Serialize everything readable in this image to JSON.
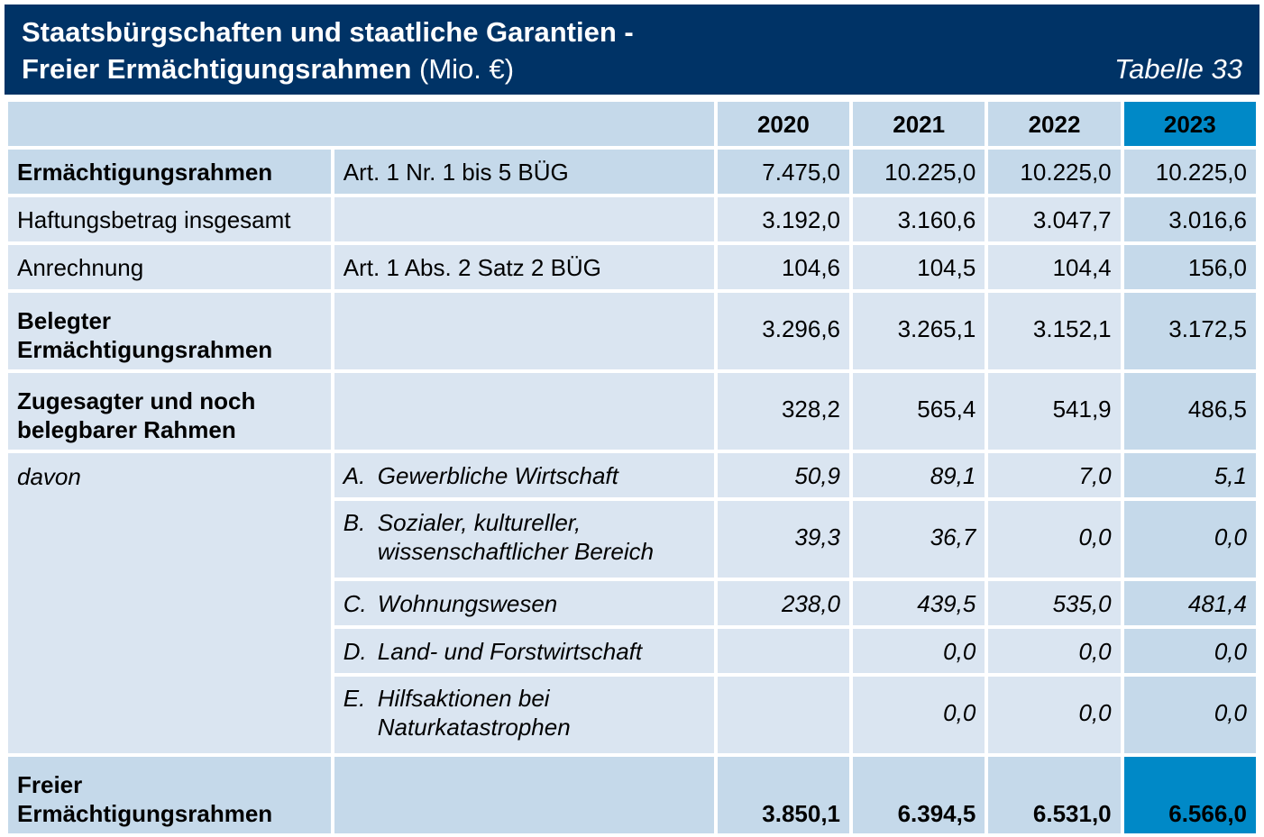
{
  "header": {
    "title_line1": "Staatsbürgschaften und staatliche Garantien -",
    "title_line2_bold": "Freier Ermächtigungsrahmen",
    "title_line2_unit": " (Mio. €)",
    "table_label": "Tabelle 33"
  },
  "years": [
    "2020",
    "2021",
    "2022",
    "2023"
  ],
  "rows": {
    "ermaechtigung": {
      "label": "Ermächtigungsrahmen",
      "ref": "Art. 1 Nr. 1 bis 5 BÜG",
      "values": [
        "7.475,0",
        "10.225,0",
        "10.225,0",
        "10.225,0"
      ]
    },
    "haftung": {
      "label": "Haftungsbetrag insgesamt",
      "ref": "",
      "values": [
        "3.192,0",
        "3.160,6",
        "3.047,7",
        "3.016,6"
      ]
    },
    "anrechnung": {
      "label": "Anrechnung",
      "ref": "Art. 1 Abs. 2 Satz 2 BÜG",
      "values": [
        "104,6",
        "104,5",
        "104,4",
        "156,0"
      ]
    },
    "belegt": {
      "label_line1": "Belegter",
      "label_line2": "Ermächtigungsrahmen",
      "values": [
        "3.296,6",
        "3.265,1",
        "3.152,1",
        "3.172,5"
      ]
    },
    "zugesagt": {
      "label_line1": "Zugesagter und noch",
      "label_line2": "belegbarer Rahmen",
      "values": [
        "328,2",
        "565,4",
        "541,9",
        "486,5"
      ]
    },
    "davon_label": "davon",
    "sub_a": {
      "letter": "A.",
      "text": "Gewerbliche Wirtschaft",
      "values": [
        "50,9",
        "89,1",
        "7,0",
        "5,1"
      ]
    },
    "sub_b": {
      "letter": "B.",
      "text_line1": "Sozialer, kultureller,",
      "text_line2": "wissenschaftlicher Bereich",
      "values": [
        "39,3",
        "36,7",
        "0,0",
        "0,0"
      ]
    },
    "sub_c": {
      "letter": "C.",
      "text": "Wohnungswesen",
      "values": [
        "238,0",
        "439,5",
        "535,0",
        "481,4"
      ]
    },
    "sub_d": {
      "letter": "D.",
      "text": "Land- und Forstwirtschaft",
      "values": [
        "",
        "0,0",
        "0,0",
        "0,0"
      ]
    },
    "sub_e": {
      "letter": "E.",
      "text_line1": "Hilfsaktionen bei",
      "text_line2": "Naturkatastrophen",
      "values": [
        "",
        "0,0",
        "0,0",
        "0,0"
      ]
    },
    "frei": {
      "label_line1": "Freier",
      "label_line2": "Ermächtigungsrahmen",
      "values": [
        "3.850,1",
        "6.394,5",
        "6.531,0",
        "6.566,0"
      ]
    }
  },
  "colors": {
    "header_bg": "#003366",
    "cell_dark": "#c5d9ea",
    "cell_light": "#dae5f1",
    "highlight": "#0089c7"
  }
}
